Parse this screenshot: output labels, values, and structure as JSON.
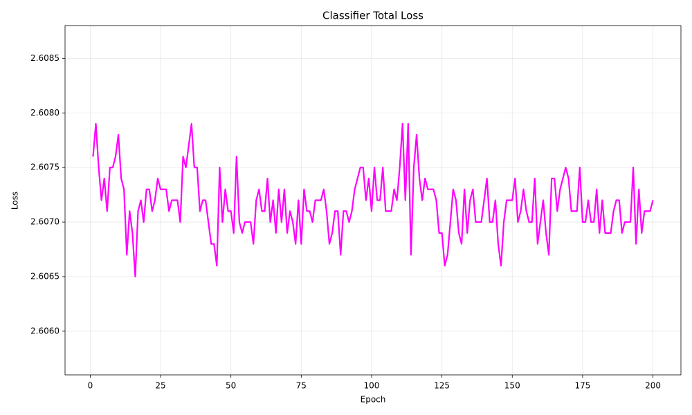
{
  "chart_data": {
    "type": "line",
    "title": "Classifier Total Loss",
    "x_label": "Epoch",
    "y_label": "Loss",
    "x": [
      1,
      2,
      3,
      4,
      5,
      6,
      7,
      8,
      9,
      10,
      11,
      12,
      13,
      14,
      15,
      16,
      17,
      18,
      19,
      20,
      21,
      22,
      23,
      24,
      25,
      26,
      27,
      28,
      29,
      30,
      31,
      32,
      33,
      34,
      35,
      36,
      37,
      38,
      39,
      40,
      41,
      42,
      43,
      44,
      45,
      46,
      47,
      48,
      49,
      50,
      51,
      52,
      53,
      54,
      55,
      56,
      57,
      58,
      59,
      60,
      61,
      62,
      63,
      64,
      65,
      66,
      67,
      68,
      69,
      70,
      71,
      72,
      73,
      74,
      75,
      76,
      77,
      78,
      79,
      80,
      81,
      82,
      83,
      84,
      85,
      86,
      87,
      88,
      89,
      90,
      91,
      92,
      93,
      94,
      95,
      96,
      97,
      98,
      99,
      100,
      101,
      102,
      103,
      104,
      105,
      106,
      107,
      108,
      109,
      110,
      111,
      112,
      113,
      114,
      115,
      116,
      117,
      118,
      119,
      120,
      121,
      122,
      123,
      124,
      125,
      126,
      127,
      128,
      129,
      130,
      131,
      132,
      133,
      134,
      135,
      136,
      137,
      138,
      139,
      140,
      141,
      142,
      143,
      144,
      145,
      146,
      147,
      148,
      149,
      150,
      151,
      152,
      153,
      154,
      155,
      156,
      157,
      158,
      159,
      160,
      161,
      162,
      163,
      164,
      165,
      166,
      167,
      168,
      169,
      170,
      171,
      172,
      173,
      174,
      175,
      176,
      177,
      178,
      179,
      180,
      181,
      182,
      183,
      184,
      185,
      186,
      187,
      188,
      189,
      190,
      191,
      192,
      193,
      194,
      195,
      196,
      197,
      198,
      199,
      200
    ],
    "series": [
      {
        "name": "Total Loss",
        "color": "#ff00ff",
        "values": [
          2.6076,
          2.6079,
          2.6075,
          2.6072,
          2.6074,
          2.6071,
          2.6075,
          2.6075,
          2.6076,
          2.6078,
          2.6074,
          2.6073,
          2.6067,
          2.6071,
          2.6069,
          2.6065,
          2.6071,
          2.6072,
          2.607,
          2.6073,
          2.6073,
          2.6071,
          2.6072,
          2.6074,
          2.6073,
          2.6073,
          2.6073,
          2.6071,
          2.6072,
          2.6072,
          2.6072,
          2.607,
          2.6076,
          2.6075,
          2.6077,
          2.6079,
          2.6075,
          2.6075,
          2.6071,
          2.6072,
          2.6072,
          2.607,
          2.6068,
          2.6068,
          2.6066,
          2.6075,
          2.607,
          2.6073,
          2.6071,
          2.6071,
          2.6069,
          2.6076,
          2.607,
          2.6069,
          2.607,
          2.607,
          2.607,
          2.6068,
          2.6072,
          2.6073,
          2.6071,
          2.6071,
          2.6074,
          2.607,
          2.6072,
          2.6069,
          2.6073,
          2.607,
          2.6073,
          2.6069,
          2.6071,
          2.607,
          2.6068,
          2.6072,
          2.6068,
          2.6073,
          2.6071,
          2.6071,
          2.607,
          2.6072,
          2.6072,
          2.6072,
          2.6073,
          2.6071,
          2.6068,
          2.6069,
          2.6071,
          2.6071,
          2.6067,
          2.6071,
          2.6071,
          2.607,
          2.6071,
          2.6073,
          2.6074,
          2.6075,
          2.6075,
          2.6072,
          2.6074,
          2.6071,
          2.6075,
          2.6072,
          2.6072,
          2.6075,
          2.6071,
          2.6071,
          2.6071,
          2.6073,
          2.6072,
          2.6075,
          2.6079,
          2.6072,
          2.6079,
          2.6067,
          2.6075,
          2.6078,
          2.6074,
          2.6072,
          2.6074,
          2.6073,
          2.6073,
          2.6073,
          2.6072,
          2.6069,
          2.6069,
          2.6066,
          2.6067,
          2.607,
          2.6073,
          2.6072,
          2.6069,
          2.6068,
          2.6073,
          2.6069,
          2.6072,
          2.6073,
          2.607,
          2.607,
          2.607,
          2.6072,
          2.6074,
          2.607,
          2.607,
          2.6072,
          2.6068,
          2.6066,
          2.607,
          2.6072,
          2.6072,
          2.6072,
          2.6074,
          2.607,
          2.6071,
          2.6073,
          2.6071,
          2.607,
          2.607,
          2.6074,
          2.6068,
          2.607,
          2.6072,
          2.6069,
          2.6067,
          2.6074,
          2.6074,
          2.6071,
          2.6073,
          2.6074,
          2.6075,
          2.6074,
          2.6071,
          2.6071,
          2.6071,
          2.6075,
          2.607,
          2.607,
          2.6072,
          2.607,
          2.607,
          2.6073,
          2.6069,
          2.6072,
          2.6069,
          2.6069,
          2.6069,
          2.6071,
          2.6072,
          2.6072,
          2.6069,
          2.607,
          2.607,
          2.607,
          2.6075,
          2.6068,
          2.6073,
          2.6069,
          2.6071,
          2.6071,
          2.6071,
          2.6072
        ]
      }
    ],
    "xlim": [
      -8.95,
      209.95
    ],
    "xticks": [
      0,
      25,
      50,
      75,
      100,
      125,
      150,
      175,
      200
    ],
    "ylim": [
      2.6056,
      2.6088
    ],
    "yticks": [
      {
        "value": 2.606,
        "label": "2.6060"
      },
      {
        "value": 2.6065,
        "label": "2.6065"
      },
      {
        "value": 2.607,
        "label": "2.6070"
      },
      {
        "value": 2.6075,
        "label": "2.6075"
      },
      {
        "value": 2.608,
        "label": "2.6080"
      },
      {
        "value": 2.6085,
        "label": "2.6085"
      }
    ],
    "grid": true
  }
}
